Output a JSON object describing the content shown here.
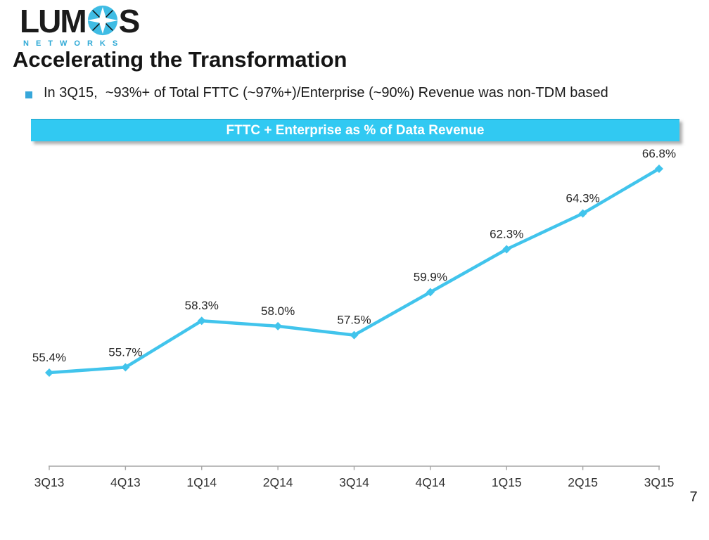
{
  "logo": {
    "word_start": "LUM",
    "word_end": "S",
    "subtext": "NETWORKS"
  },
  "title": "Accelerating the Transformation",
  "bullet": {
    "text": "In 3Q15,  ~93%+ of Total FTTC (~97%+)/Enterprise (~90%) Revenue was non-TDM based"
  },
  "chart_banner": "FTTC + Enterprise as % of Data Revenue",
  "page_number": "7",
  "colors": {
    "banner_cyan": "#31C9F2",
    "line_cyan": "#41C4EC",
    "bullet_cyan": "#38A7DA",
    "logo_cyan": "#3FBCE4",
    "networks_cyan": "#2EA9D6",
    "axis_gray": "#A6A6A6",
    "tick_label": "#333333",
    "data_label": "#262626"
  },
  "chart_data": {
    "type": "line",
    "title": "FTTC + Enterprise as % of Data Revenue",
    "categories": [
      "3Q13",
      "4Q13",
      "1Q14",
      "2Q14",
      "3Q14",
      "4Q14",
      "1Q15",
      "2Q15",
      "3Q15"
    ],
    "series": [
      {
        "name": "FTTC + Enterprise as % of Data Revenue",
        "values": [
          55.4,
          55.7,
          58.3,
          58.0,
          57.5,
          59.9,
          62.3,
          64.3,
          66.8
        ]
      }
    ],
    "data_labels": [
      "55.4%",
      "55.7%",
      "58.3%",
      "58.0%",
      "57.5%",
      "59.9%",
      "62.3%",
      "64.3%",
      "66.8%"
    ],
    "xlabel": "",
    "ylabel": "",
    "ylim": [
      50,
      70
    ],
    "grid": false,
    "legend": false,
    "y_axis_visible": false,
    "marker": "diamond"
  }
}
